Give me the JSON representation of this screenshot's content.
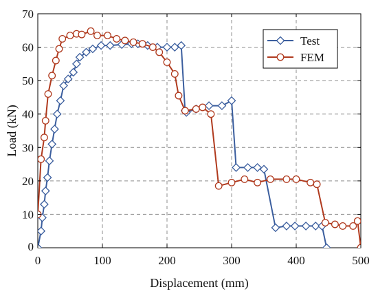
{
  "chart_data": {
    "type": "line",
    "xlabel": "Displacement (mm)",
    "ylabel": "Load (kN)",
    "xlim": [
      0,
      500
    ],
    "ylim": [
      0,
      70
    ],
    "xticks": [
      0,
      100,
      200,
      300,
      400,
      500
    ],
    "yticks": [
      10,
      20,
      30,
      40,
      50,
      60,
      70
    ],
    "y_origin_label": "0",
    "grid": true,
    "legend_position": "top-right",
    "series": [
      {
        "name": "Test",
        "color": "#3b5e9e",
        "marker": "diamond",
        "points": [
          [
            0,
            0
          ],
          [
            5,
            5
          ],
          [
            7,
            9
          ],
          [
            10,
            13
          ],
          [
            12,
            17
          ],
          [
            15,
            21
          ],
          [
            18,
            26
          ],
          [
            22,
            31
          ],
          [
            26,
            35.5
          ],
          [
            30,
            40
          ],
          [
            35,
            44
          ],
          [
            40,
            48.5
          ],
          [
            47,
            50.5
          ],
          [
            55,
            52.5
          ],
          [
            60,
            55
          ],
          [
            65,
            57
          ],
          [
            75,
            58.5
          ],
          [
            85,
            59.5
          ],
          [
            98,
            60.5
          ],
          [
            112,
            60.5
          ],
          [
            130,
            60.8
          ],
          [
            145,
            61
          ],
          [
            155,
            61
          ],
          [
            170,
            60.5
          ],
          [
            185,
            60
          ],
          [
            200,
            60
          ],
          [
            212,
            60
          ],
          [
            222,
            60.5
          ],
          [
            228,
            41
          ],
          [
            230,
            40.5
          ],
          [
            245,
            41.5
          ],
          [
            265,
            42.5
          ],
          [
            285,
            42.5
          ],
          [
            300,
            44
          ],
          [
            307,
            24
          ],
          [
            325,
            24
          ],
          [
            340,
            24
          ],
          [
            350,
            23.5
          ],
          [
            368,
            6
          ],
          [
            385,
            6.5
          ],
          [
            398,
            6.5
          ],
          [
            415,
            6.5
          ],
          [
            430,
            6.5
          ],
          [
            440,
            6.5
          ],
          [
            447,
            0
          ]
        ]
      },
      {
        "name": "FEM",
        "color": "#b03a1e",
        "marker": "circle",
        "points": [
          [
            0,
            10
          ],
          [
            5,
            26.5
          ],
          [
            10,
            33
          ],
          [
            12,
            38
          ],
          [
            16,
            46
          ],
          [
            22,
            51.5
          ],
          [
            28,
            56
          ],
          [
            33,
            59.5
          ],
          [
            38,
            62.5
          ],
          [
            50,
            63.5
          ],
          [
            60,
            64
          ],
          [
            68,
            63.8
          ],
          [
            82,
            64.8
          ],
          [
            92,
            63.5
          ],
          [
            108,
            63.5
          ],
          [
            122,
            62.5
          ],
          [
            135,
            62
          ],
          [
            148,
            61.5
          ],
          [
            162,
            61
          ],
          [
            178,
            60
          ],
          [
            188,
            58.5
          ],
          [
            200,
            55.5
          ],
          [
            212,
            52
          ],
          [
            218,
            45.5
          ],
          [
            228,
            41
          ],
          [
            245,
            41.5
          ],
          [
            255,
            42
          ],
          [
            268,
            40
          ],
          [
            280,
            18.5
          ],
          [
            300,
            19.5
          ],
          [
            320,
            20.5
          ],
          [
            340,
            19.5
          ],
          [
            360,
            20.5
          ],
          [
            385,
            20.5
          ],
          [
            400,
            20.5
          ],
          [
            422,
            19.5
          ],
          [
            432,
            19
          ],
          [
            445,
            7.5
          ],
          [
            460,
            7
          ],
          [
            472,
            6.5
          ],
          [
            488,
            6.5
          ],
          [
            495,
            8
          ],
          [
            500,
            0
          ]
        ]
      }
    ]
  }
}
